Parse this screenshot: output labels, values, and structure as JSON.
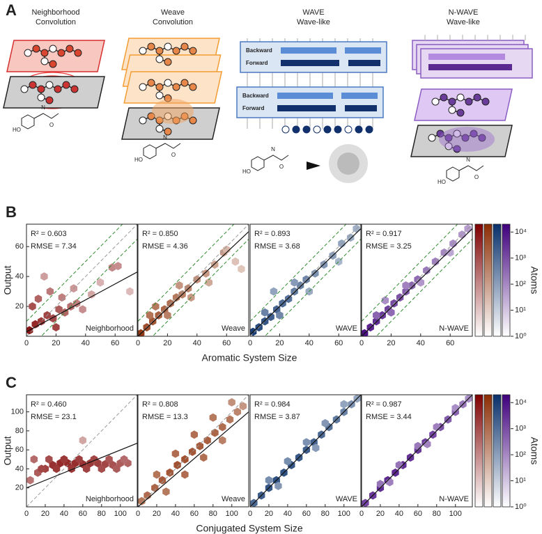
{
  "panel_a": {
    "label": "A",
    "columns": [
      {
        "title": "Neighborhood",
        "subtitle": "Convolution"
      },
      {
        "title": "Weave",
        "subtitle": "Convolution"
      },
      {
        "title": "WAVE",
        "subtitle": "Wave-like"
      },
      {
        "title": "N-WAVE",
        "subtitle": "Wave-like"
      }
    ],
    "backward": "Backward",
    "forward": "Forward",
    "molecule_labels": [
      "HO",
      "N",
      "O"
    ]
  },
  "chart_data": [
    {
      "type": "hexbin",
      "label": "B",
      "xlabel": "Aromatic System Size",
      "ylabel": "Output",
      "xlim": [
        0,
        75
      ],
      "ylim": [
        0,
        75
      ],
      "xticks": [
        0,
        20,
        40,
        60
      ],
      "yticks": [
        20,
        40,
        60
      ],
      "identity_line": true,
      "band": 10,
      "colorbar_label": "Atoms",
      "clim": [
        1,
        20000
      ],
      "cticks": [
        {
          "value": 1,
          "label": "10⁰"
        },
        {
          "value": 10,
          "label": "10¹"
        },
        {
          "value": 100,
          "label": "10²"
        },
        {
          "value": 1000,
          "label": "10³"
        },
        {
          "value": 10000,
          "label": "10⁴"
        }
      ],
      "series": [
        {
          "name": "Neighborhood",
          "color": "#7f0000",
          "annotations": [
            "R² = 0.603",
            "RMSE = 7.34"
          ],
          "x": [
            2,
            6,
            10,
            14,
            18,
            22,
            26,
            30,
            34,
            38,
            8,
            16,
            24,
            32,
            44,
            50,
            58,
            62,
            70,
            12,
            20,
            4
          ],
          "y": [
            4,
            8,
            10,
            14,
            12,
            18,
            16,
            20,
            22,
            18,
            25,
            30,
            26,
            32,
            28,
            36,
            46,
            47,
            30,
            40,
            6,
            20
          ],
          "count": [
            8000,
            3000,
            1500,
            900,
            700,
            300,
            200,
            120,
            60,
            30,
            200,
            80,
            60,
            20,
            10,
            6,
            40,
            30,
            4,
            15,
            900,
            500
          ],
          "fit": {
            "x": [
              0,
              75
            ],
            "y": [
              3,
              43
            ]
          }
        },
        {
          "name": "Weave",
          "color": "#8c2d04",
          "annotations": [
            "R² = 0.850",
            "RMSE = 4.36"
          ],
          "x": [
            2,
            6,
            10,
            14,
            18,
            22,
            26,
            30,
            34,
            40,
            46,
            52,
            58,
            60,
            66,
            70,
            12,
            20,
            28,
            36,
            48,
            8
          ],
          "y": [
            2,
            6,
            10,
            14,
            18,
            22,
            26,
            28,
            32,
            38,
            42,
            48,
            56,
            58,
            50,
            45,
            20,
            14,
            34,
            26,
            36,
            14
          ],
          "count": [
            9000,
            3000,
            2000,
            1200,
            800,
            500,
            300,
            200,
            150,
            80,
            50,
            30,
            40,
            10,
            5,
            4,
            300,
            200,
            60,
            50,
            20,
            400
          ],
          "fit": {
            "x": [
              0,
              75
            ],
            "y": [
              0,
              70
            ]
          }
        },
        {
          "name": "WAVE",
          "color": "#08306b",
          "annotations": [
            "R² = 0.893",
            "RMSE = 3.68"
          ],
          "x": [
            2,
            6,
            10,
            14,
            18,
            22,
            26,
            30,
            34,
            38,
            44,
            50,
            56,
            62,
            68,
            72,
            10,
            20,
            30,
            40,
            60,
            16
          ],
          "y": [
            3,
            6,
            10,
            13,
            18,
            22,
            25,
            30,
            34,
            38,
            42,
            48,
            54,
            62,
            66,
            72,
            16,
            14,
            36,
            30,
            50,
            30
          ],
          "count": [
            9000,
            4000,
            2500,
            1500,
            1000,
            700,
            500,
            300,
            200,
            150,
            80,
            60,
            40,
            30,
            20,
            15,
            200,
            150,
            50,
            20,
            10,
            30
          ],
          "fit": {
            "x": [
              0,
              75
            ],
            "y": [
              1,
              72
            ]
          }
        },
        {
          "name": "N-WAVE",
          "color": "#3f007d",
          "annotations": [
            "R² = 0.917",
            "RMSE = 3.25"
          ],
          "x": [
            2,
            6,
            10,
            14,
            18,
            22,
            26,
            30,
            34,
            38,
            44,
            50,
            56,
            62,
            68,
            72,
            10,
            20,
            30,
            40,
            60,
            16
          ],
          "y": [
            2,
            6,
            10,
            14,
            18,
            22,
            26,
            30,
            34,
            38,
            44,
            50,
            56,
            62,
            68,
            72,
            14,
            16,
            34,
            36,
            56,
            24
          ],
          "count": [
            9000,
            4000,
            2500,
            1500,
            1000,
            700,
            500,
            300,
            200,
            150,
            80,
            60,
            40,
            30,
            20,
            15,
            200,
            150,
            50,
            20,
            10,
            30
          ],
          "fit": {
            "x": [
              0,
              75
            ],
            "y": [
              0,
              72
            ]
          }
        }
      ]
    },
    {
      "type": "hexbin",
      "label": "C",
      "xlabel": "Conjugated System Size",
      "ylabel": "Output",
      "xlim": [
        0,
        118
      ],
      "ylim": [
        0,
        118
      ],
      "xticks": [
        0,
        20,
        40,
        60,
        80,
        100
      ],
      "yticks": [
        20,
        40,
        60,
        80,
        100
      ],
      "identity_line": true,
      "colorbar_label": "Atoms",
      "clim": [
        1,
        20000
      ],
      "cticks": [
        {
          "value": 1,
          "label": "10⁰"
        },
        {
          "value": 10,
          "label": "10¹"
        },
        {
          "value": 100,
          "label": "10²"
        },
        {
          "value": 1000,
          "label": "10³"
        },
        {
          "value": 10000,
          "label": "10⁴"
        }
      ],
      "series": [
        {
          "name": "Neighborhood",
          "color": "#7f0000",
          "annotations": [
            "R² = 0.460",
            "RMSE = 23.1"
          ],
          "x": [
            4,
            12,
            20,
            28,
            36,
            44,
            52,
            60,
            68,
            76,
            84,
            92,
            100,
            108,
            8,
            24,
            40,
            56,
            72,
            88,
            104,
            16,
            32,
            48,
            64,
            80,
            96,
            60
          ],
          "y": [
            28,
            36,
            40,
            44,
            46,
            46,
            46,
            45,
            46,
            46,
            45,
            44,
            46,
            46,
            50,
            50,
            50,
            50,
            50,
            50,
            50,
            40,
            40,
            40,
            40,
            40,
            40,
            70
          ],
          "count": [
            100,
            300,
            1000,
            2000,
            3000,
            3000,
            2500,
            2000,
            1500,
            1200,
            800,
            500,
            300,
            200,
            150,
            600,
            1500,
            1200,
            800,
            400,
            150,
            800,
            1500,
            1500,
            1000,
            600,
            300,
            10
          ],
          "fit": {
            "x": [
              0,
              118
            ],
            "y": [
              20,
              67
            ]
          }
        },
        {
          "name": "Weave",
          "color": "#8c2d04",
          "annotations": [
            "R² = 0.808",
            "RMSE = 13.3"
          ],
          "x": [
            4,
            10,
            18,
            26,
            34,
            42,
            50,
            58,
            66,
            74,
            82,
            90,
            98,
            106,
            112,
            20,
            40,
            60,
            80,
            100,
            30,
            50,
            70,
            90
          ],
          "y": [
            6,
            12,
            20,
            28,
            36,
            44,
            50,
            58,
            64,
            70,
            78,
            84,
            92,
            100,
            106,
            34,
            56,
            76,
            94,
            110,
            16,
            34,
            52,
            70
          ],
          "count": [
            300,
            600,
            900,
            1500,
            2000,
            2500,
            2500,
            2000,
            1500,
            1200,
            800,
            500,
            300,
            150,
            60,
            400,
            600,
            500,
            300,
            80,
            300,
            600,
            500,
            200
          ],
          "fit": {
            "x": [
              0,
              118
            ],
            "y": [
              0,
              100
            ]
          }
        },
        {
          "name": "WAVE",
          "color": "#08306b",
          "annotations": [
            "R² = 0.984",
            "RMSE = 3.87"
          ],
          "x": [
            4,
            12,
            20,
            28,
            36,
            44,
            52,
            60,
            68,
            76,
            84,
            92,
            100,
            108,
            114,
            20,
            40,
            60,
            80,
            100,
            30,
            70
          ],
          "y": [
            4,
            12,
            20,
            28,
            36,
            44,
            52,
            60,
            68,
            76,
            84,
            92,
            100,
            108,
            114,
            28,
            48,
            68,
            88,
            108,
            22,
            62
          ],
          "count": [
            800,
            1500,
            2500,
            3000,
            3000,
            2500,
            2000,
            1500,
            1200,
            800,
            500,
            300,
            200,
            80,
            30,
            100,
            100,
            80,
            60,
            30,
            60,
            50
          ],
          "fit": {
            "x": [
              0,
              118
            ],
            "y": [
              0,
              118
            ]
          }
        },
        {
          "name": "N-WAVE",
          "color": "#3f007d",
          "annotations": [
            "R² = 0.987",
            "RMSE = 3.44"
          ],
          "x": [
            4,
            12,
            20,
            28,
            36,
            44,
            52,
            60,
            68,
            76,
            84,
            92,
            100,
            108,
            114,
            20,
            40,
            60,
            80,
            100,
            30,
            70
          ],
          "y": [
            4,
            12,
            20,
            28,
            36,
            44,
            52,
            60,
            68,
            76,
            84,
            92,
            100,
            108,
            114,
            24,
            44,
            64,
            84,
            104,
            26,
            66
          ],
          "count": [
            800,
            1500,
            2500,
            3000,
            3000,
            2500,
            2000,
            1500,
            1200,
            800,
            500,
            300,
            200,
            80,
            30,
            100,
            100,
            80,
            60,
            30,
            60,
            50
          ],
          "fit": {
            "x": [
              0,
              118
            ],
            "y": [
              0,
              118
            ]
          }
        }
      ]
    }
  ]
}
